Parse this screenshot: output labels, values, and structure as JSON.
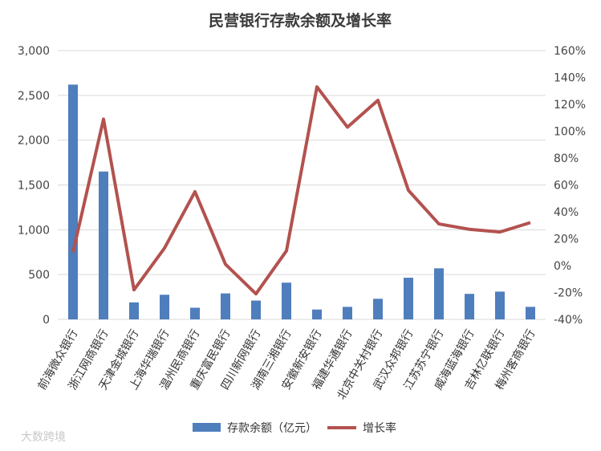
{
  "watermark": "大数跨境",
  "chart_data": {
    "type": "bar+line",
    "title": "民营银行存款余额及增长率",
    "categories": [
      "前海微众银行",
      "浙江网商银行",
      "天津金城银行",
      "上海华瑞银行",
      "温州民商银行",
      "重庆富民银行",
      "四川新网银行",
      "湖南三湘银行",
      "安徽新安银行",
      "福建华通银行",
      "北京中关村银行",
      "武汉众邦银行",
      "江苏苏宁银行",
      "威海蓝海银行",
      "吉林亿联银行",
      "梅州客商银行"
    ],
    "series": [
      {
        "name": "存款余额（亿元）",
        "type": "bar",
        "axis": "left",
        "color": "#4f7ebd",
        "values": [
          2620,
          1650,
          190,
          275,
          130,
          290,
          210,
          410,
          110,
          140,
          230,
          465,
          570,
          285,
          310,
          140
        ]
      },
      {
        "name": "增长率",
        "type": "line",
        "axis": "right",
        "color": "#b3524f",
        "values": [
          10,
          109,
          -18,
          13,
          55,
          1,
          -21,
          11,
          133,
          103,
          123,
          56,
          31,
          27,
          25,
          32
        ]
      }
    ],
    "y_left": {
      "min": 0,
      "max": 3000,
      "ticks": [
        "0",
        "500",
        "1,000",
        "1,500",
        "2,000",
        "2,500",
        "3,000"
      ]
    },
    "y_right": {
      "min": -40,
      "max": 160,
      "ticks": [
        "-40%",
        "-20%",
        "0%",
        "20%",
        "40%",
        "60%",
        "80%",
        "100%",
        "120%",
        "140%",
        "160%"
      ]
    },
    "grid": true,
    "legend": "bottom"
  }
}
